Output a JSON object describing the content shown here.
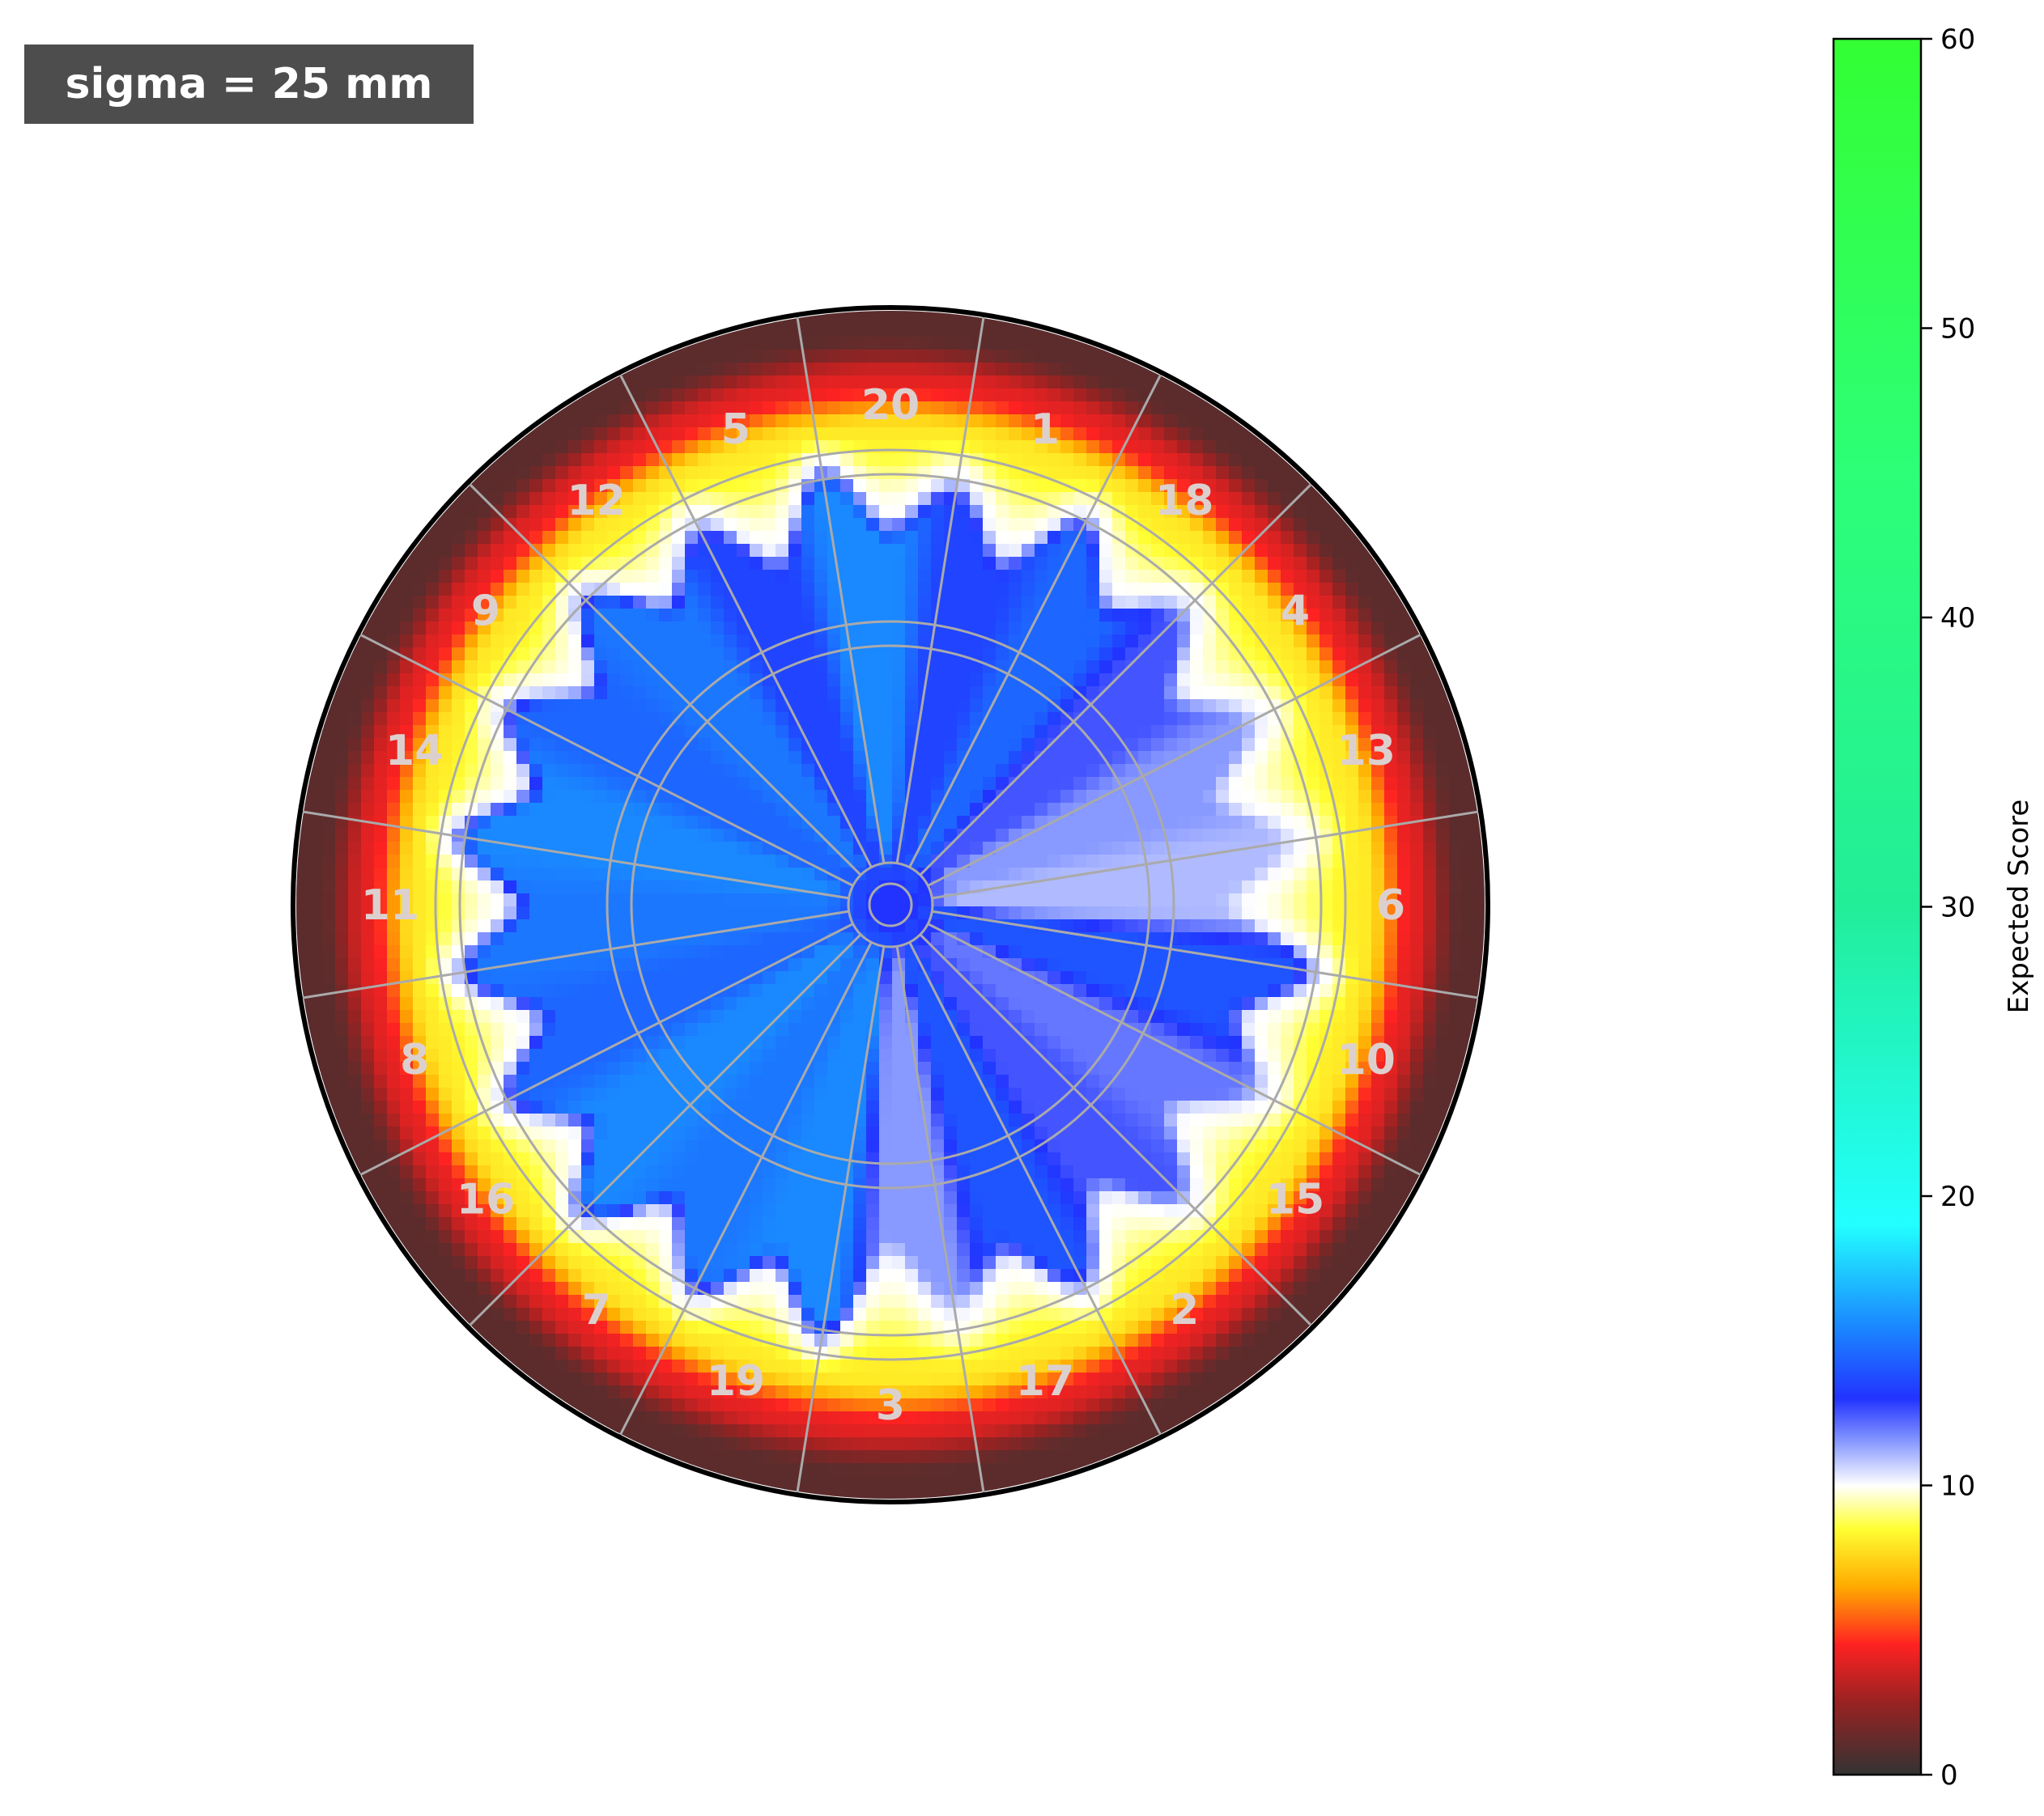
{
  "annotation": {
    "text": "sigma = 25 mm"
  },
  "chart_data": {
    "type": "heatmap",
    "title": "",
    "board_numbers": [
      "20",
      "1",
      "18",
      "4",
      "13",
      "6",
      "10",
      "15",
      "2",
      "17",
      "3",
      "19",
      "7",
      "16",
      "8",
      "11",
      "14",
      "9",
      "12",
      "5"
    ],
    "colorbar": {
      "label": "Expected Score",
      "range": [
        0,
        60
      ],
      "ticks": [
        "0",
        "10",
        "20",
        "30",
        "40",
        "50",
        "60"
      ],
      "stops": [
        {
          "value": 0,
          "color": "#333333"
        },
        {
          "value": 2.5,
          "color": "#992222"
        },
        {
          "value": 4.5,
          "color": "#ff2222"
        },
        {
          "value": 6.5,
          "color": "#ffaa00"
        },
        {
          "value": 8.5,
          "color": "#ffff33"
        },
        {
          "value": 10,
          "color": "#ffffff"
        },
        {
          "value": 11.5,
          "color": "#8899ff"
        },
        {
          "value": 13,
          "color": "#2233ff"
        },
        {
          "value": 15.5,
          "color": "#1a88ff"
        },
        {
          "value": 19,
          "color": "#22ffff"
        },
        {
          "value": 30,
          "color": "#22ee99"
        },
        {
          "value": 45,
          "color": "#2dff77"
        },
        {
          "value": 60,
          "color": "#33ff33"
        }
      ]
    },
    "zones": [
      {
        "zone": "bull",
        "expected_score": 13
      },
      {
        "zone": "inner ring",
        "expected_score": 13.5
      },
      {
        "zone": "blue lobes (max)",
        "expected_score": 15
      },
      {
        "zone": "pale region near 13/6/10 and 3/17",
        "expected_score": 11
      },
      {
        "zone": "yellow band",
        "expected_score": 8
      },
      {
        "zone": "red band",
        "expected_score": 4
      },
      {
        "zone": "outer dark ring",
        "expected_score": 1
      }
    ],
    "sector_scores": [
      {
        "number": "20",
        "value": 15.5
      },
      {
        "number": "1",
        "value": 13.5
      },
      {
        "number": "18",
        "value": 14.5
      },
      {
        "number": "4",
        "value": 12.5
      },
      {
        "number": "13",
        "value": 11.5
      },
      {
        "number": "6",
        "value": 11
      },
      {
        "number": "10",
        "value": 14.0
      },
      {
        "number": "15",
        "value": 12
      },
      {
        "number": "2",
        "value": 12.5
      },
      {
        "number": "17",
        "value": 14
      },
      {
        "number": "3",
        "value": 11.5
      },
      {
        "number": "19",
        "value": 15.5
      },
      {
        "number": "7",
        "value": 15
      },
      {
        "number": "16",
        "value": 15.5
      },
      {
        "number": "8",
        "value": 14.5
      },
      {
        "number": "11",
        "value": 15
      },
      {
        "number": "14",
        "value": 15.5
      },
      {
        "number": "9",
        "value": 14.5
      },
      {
        "number": "12",
        "value": 15
      },
      {
        "number": "5",
        "value": 13.5
      }
    ],
    "grid": true
  }
}
